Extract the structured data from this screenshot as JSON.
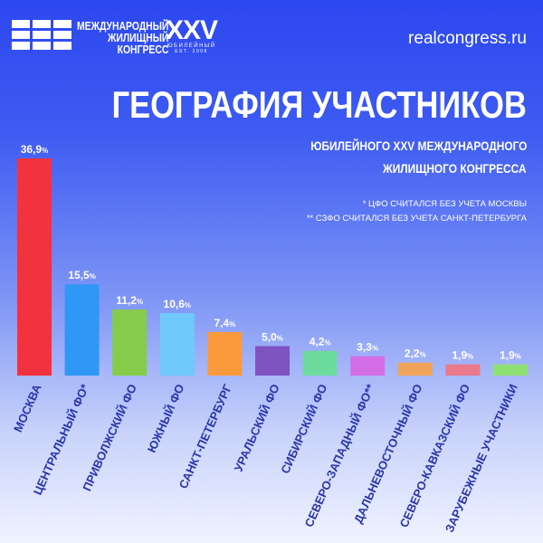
{
  "header": {
    "logo_lines": [
      "МЕЖДУНАРОДНЫЙ",
      "ЖИЛИЩНЫЙ",
      "КОНГРЕСС"
    ],
    "edition": "XXV",
    "edition_sub": "ЮБИЛЕЙНЫЙ",
    "est": "EST. 2008",
    "site": "realcongress.ru"
  },
  "chart_data": {
    "type": "bar",
    "title": "ГЕОГРАФИЯ УЧАСТНИКОВ",
    "subtitle": [
      "ЮБИЛЕЙНОГО XXV МЕЖДУНАРОДНОГО",
      "ЖИЛИЩНОГО КОНГРЕССА"
    ],
    "notes": [
      "* ЦФО СЧИТАЛСЯ БЕЗ УЧЕТА МОСКВЫ",
      "** СЗФО СЧИТАЛСЯ БЕЗ УЧЕТА САНКТ-ПЕТЕРБУРГА"
    ],
    "categories": [
      "МОСКВА",
      "ЦЕНТРАЛЬНЫЙ ФО*",
      "ПРИВОЛЖСКИЙ ФО",
      "ЮЖНЫЙ ФО",
      "САНКТ-ПЕТЕРБУРГ",
      "УРАЛЬСКИЙ ФО",
      "СИБИРСКИЙ ФО",
      "СЕВЕРО-ЗАПАДНЫЙ ФО**",
      "ДАЛЬНЕВОСТОЧНЫЙ ФО",
      "СЕВЕРО-КАВКАЗСКИЙ ФО",
      "ЗАРУБЕЖНЫЕ УЧАСТНИКИ"
    ],
    "values": [
      36.9,
      15.5,
      11.2,
      10.6,
      7.4,
      5.0,
      4.2,
      3.3,
      2.2,
      1.9,
      1.9
    ],
    "data_labels": [
      "36,9",
      "15,5",
      "11,2",
      "10,6",
      "7,4",
      "5,0",
      "4,2",
      "3,3",
      "2,2",
      "1,9",
      "1,9"
    ],
    "unit": "%",
    "colors": [
      "#f3323f",
      "#2f97f5",
      "#86cc4a",
      "#6fc9fb",
      "#fb9a3c",
      "#7f52c2",
      "#6edb9e",
      "#d36ee6",
      "#f0a45a",
      "#e9798b",
      "#8fe072"
    ],
    "ylim": [
      0,
      36.9
    ],
    "grid": false,
    "legend": "none"
  }
}
